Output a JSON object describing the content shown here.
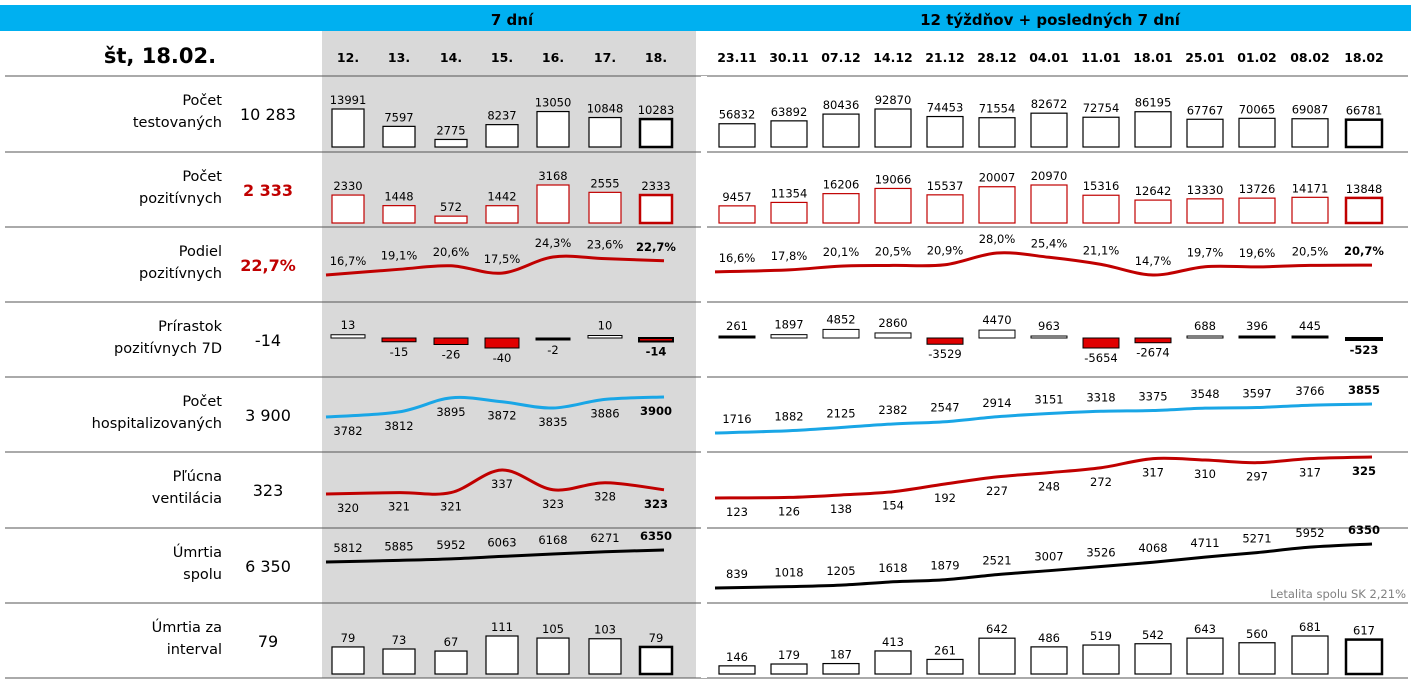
{
  "header": {
    "date": "št, 18.02.",
    "section_left": "7 dní",
    "section_right": "12 týždňov + posledných 7 dní"
  },
  "colors": {
    "header_blue": "#00b0f0",
    "shade": "#d9d9d9",
    "red": "#c00000",
    "bright_red": "#e00000",
    "blue_line": "#19a6e6",
    "black": "#000000"
  },
  "days": [
    "12.",
    "13.",
    "14.",
    "15.",
    "16.",
    "17.",
    "18."
  ],
  "weeks": [
    "23.11",
    "30.11",
    "07.12",
    "14.12",
    "21.12",
    "28.12",
    "04.01",
    "11.01",
    "18.01",
    "25.01",
    "01.02",
    "08.02",
    "18.02"
  ],
  "rows": [
    {
      "label_lines": [
        "Počet",
        "testovaných"
      ],
      "value": "10 283",
      "value_color": "#000000"
    },
    {
      "label_lines": [
        "Počet",
        "pozitívnych"
      ],
      "value": "2 333",
      "value_color": "#c00000"
    },
    {
      "label_lines": [
        "Podiel",
        "pozitívnych"
      ],
      "value": "22,7%",
      "value_color": "#c00000"
    },
    {
      "label_lines": [
        "Prírastok",
        "pozitívnych 7D"
      ],
      "value": "-14",
      "value_color": "#000000"
    },
    {
      "label_lines": [
        "Počet",
        "hospitalizovaných"
      ],
      "value": "3 900",
      "value_color": "#000000"
    },
    {
      "label_lines": [
        "Pľúcna",
        "ventilácia"
      ],
      "value": "323",
      "value_color": "#000000"
    },
    {
      "label_lines": [
        "Úmrtia",
        "spolu"
      ],
      "value": "6 350",
      "value_color": "#000000"
    },
    {
      "label_lines": [
        "Úmrtia za",
        "interval"
      ],
      "value": "79",
      "value_color": "#000000"
    }
  ],
  "footnote": "Letalita spolu SK 2,21%",
  "chart_data": [
    {
      "type": "bar",
      "title": "Počet testovaných",
      "categories": [
        "12.",
        "13.",
        "14.",
        "15.",
        "16.",
        "17.",
        "18."
      ],
      "values": [
        13991,
        7597,
        2775,
        8237,
        13050,
        10848,
        10283
      ],
      "labels": [
        "13991",
        "7597",
        "2775",
        "8237",
        "13050",
        "10848",
        "10283"
      ]
    },
    {
      "type": "bar",
      "title": "Počet testovaných",
      "categories": [
        "23.11",
        "30.11",
        "07.12",
        "14.12",
        "21.12",
        "28.12",
        "04.01",
        "11.01",
        "18.01",
        "25.01",
        "01.02",
        "08.02",
        "18.02"
      ],
      "values": [
        56832,
        63892,
        80436,
        92870,
        74453,
        71554,
        82672,
        72754,
        86195,
        67767,
        70065,
        69087,
        66781
      ],
      "labels": [
        "56832",
        "63892",
        "80436",
        "92870",
        "74453",
        "71554",
        "82672",
        "72754",
        "86195",
        "67767",
        "70065",
        "69087",
        "66781"
      ]
    },
    {
      "type": "bar",
      "title": "Počet pozitívnych",
      "categories": [
        "12.",
        "13.",
        "14.",
        "15.",
        "16.",
        "17.",
        "18."
      ],
      "values": [
        2330,
        1448,
        572,
        1442,
        3168,
        2555,
        2333
      ],
      "labels": [
        "2330",
        "1448",
        "572",
        "1442",
        "3168",
        "2555",
        "2333"
      ]
    },
    {
      "type": "bar",
      "title": "Počet pozitívnych",
      "categories": [
        "23.11",
        "30.11",
        "07.12",
        "14.12",
        "21.12",
        "28.12",
        "04.01",
        "11.01",
        "18.01",
        "25.01",
        "01.02",
        "08.02",
        "18.02"
      ],
      "values": [
        9457,
        11354,
        16206,
        19066,
        15537,
        20007,
        20970,
        15316,
        12642,
        13330,
        13726,
        14171,
        13848
      ],
      "labels": [
        "9457",
        "11354",
        "16206",
        "19066",
        "15537",
        "20007",
        "20970",
        "15316",
        "12642",
        "13330",
        "13726",
        "14171",
        "13848"
      ]
    },
    {
      "type": "line",
      "title": "Podiel pozitívnych",
      "categories": [
        "12.",
        "13.",
        "14.",
        "15.",
        "16.",
        "17.",
        "18."
      ],
      "values": [
        16.7,
        19.1,
        20.6,
        17.5,
        24.3,
        23.6,
        22.7
      ],
      "labels": [
        "16,7%",
        "19,1%",
        "20,6%",
        "17,5%",
        "24,3%",
        "23,6%",
        "22,7%"
      ]
    },
    {
      "type": "line",
      "title": "Podiel pozitívnych",
      "categories": [
        "23.11",
        "30.11",
        "07.12",
        "14.12",
        "21.12",
        "28.12",
        "04.01",
        "11.01",
        "18.01",
        "25.01",
        "01.02",
        "08.02",
        "18.02"
      ],
      "values": [
        16.6,
        17.8,
        20.1,
        20.5,
        20.9,
        28.0,
        25.4,
        21.1,
        14.7,
        19.7,
        19.6,
        20.5,
        20.7
      ],
      "labels": [
        "16,6%",
        "17,8%",
        "20,1%",
        "20,5%",
        "20,9%",
        "28,0%",
        "25,4%",
        "21,1%",
        "14,7%",
        "19,7%",
        "19,6%",
        "20,5%",
        "20,7%"
      ]
    },
    {
      "type": "bar",
      "title": "Prírastok pozitívnych 7D",
      "categories": [
        "12.",
        "13.",
        "14.",
        "15.",
        "16.",
        "17.",
        "18."
      ],
      "values": [
        13,
        -15,
        -26,
        -40,
        -2,
        10,
        -14
      ],
      "labels": [
        "13",
        "-15",
        "-26",
        "-40",
        "-2",
        "10",
        "-14"
      ]
    },
    {
      "type": "bar",
      "title": "Prírastok pozitívnych 7D",
      "categories": [
        "23.11",
        "30.11",
        "07.12",
        "14.12",
        "21.12",
        "28.12",
        "04.01",
        "11.01",
        "18.01",
        "25.01",
        "01.02",
        "08.02",
        "18.02"
      ],
      "values": [
        261,
        1897,
        4852,
        2860,
        -3529,
        4470,
        963,
        -5654,
        -2674,
        688,
        396,
        445,
        -523
      ],
      "labels": [
        "261",
        "1897",
        "4852",
        "2860",
        "-3529",
        "4470",
        "963",
        "-5654",
        "-2674",
        "688",
        "396",
        "445",
        "-523"
      ]
    },
    {
      "type": "line",
      "title": "Počet hospitalizovaných",
      "categories": [
        "12.",
        "13.",
        "14.",
        "15.",
        "16.",
        "17.",
        "18."
      ],
      "values": [
        3782,
        3812,
        3895,
        3872,
        3835,
        3886,
        3900
      ],
      "labels": [
        "3782",
        "3812",
        "3895",
        "3872",
        "3835",
        "3886",
        "3900"
      ]
    },
    {
      "type": "line",
      "title": "Počet hospitalizovaných",
      "categories": [
        "23.11",
        "30.11",
        "07.12",
        "14.12",
        "21.12",
        "28.12",
        "04.01",
        "11.01",
        "18.01",
        "25.01",
        "01.02",
        "08.02",
        "18.02"
      ],
      "values": [
        1716,
        1882,
        2125,
        2382,
        2547,
        2914,
        3151,
        3318,
        3375,
        3548,
        3597,
        3766,
        3855
      ],
      "labels": [
        "1716",
        "1882",
        "2125",
        "2382",
        "2547",
        "2914",
        "3151",
        "3318",
        "3375",
        "3548",
        "3597",
        "3766",
        "3855"
      ]
    },
    {
      "type": "line",
      "title": "Pľúcna ventilácia",
      "categories": [
        "12.",
        "13.",
        "14.",
        "15.",
        "16.",
        "17.",
        "18."
      ],
      "values": [
        320,
        321,
        321,
        337,
        323,
        328,
        323
      ],
      "labels": [
        "320",
        "321",
        "321",
        "337",
        "323",
        "328",
        "323"
      ]
    },
    {
      "type": "line",
      "title": "Pľúcna ventilácia",
      "categories": [
        "23.11",
        "30.11",
        "07.12",
        "14.12",
        "21.12",
        "28.12",
        "04.01",
        "11.01",
        "18.01",
        "25.01",
        "01.02",
        "08.02",
        "18.02"
      ],
      "values": [
        123,
        126,
        138,
        154,
        192,
        227,
        248,
        272,
        317,
        310,
        297,
        317,
        325
      ],
      "labels": [
        "123",
        "126",
        "138",
        "154",
        "192",
        "227",
        "248",
        "272",
        "317",
        "310",
        "297",
        "317",
        "325"
      ]
    },
    {
      "type": "line",
      "title": "Úmrtia spolu",
      "categories": [
        "12.",
        "13.",
        "14.",
        "15.",
        "16.",
        "17.",
        "18."
      ],
      "values": [
        5812,
        5885,
        5952,
        6063,
        6168,
        6271,
        6350
      ],
      "labels": [
        "5812",
        "5885",
        "5952",
        "6063",
        "6168",
        "6271",
        "6350"
      ]
    },
    {
      "type": "line",
      "title": "Úmrtia spolu",
      "categories": [
        "23.11",
        "30.11",
        "07.12",
        "14.12",
        "21.12",
        "28.12",
        "04.01",
        "11.01",
        "18.01",
        "25.01",
        "01.02",
        "08.02",
        "18.02"
      ],
      "values": [
        839,
        1018,
        1205,
        1618,
        1879,
        2521,
        3007,
        3526,
        4068,
        4711,
        5271,
        5952,
        6350
      ],
      "labels": [
        "839",
        "1018",
        "1205",
        "1618",
        "1879",
        "2521",
        "3007",
        "3526",
        "4068",
        "4711",
        "5271",
        "5952",
        "6350"
      ]
    },
    {
      "type": "bar",
      "title": "Úmrtia za interval",
      "categories": [
        "12.",
        "13.",
        "14.",
        "15.",
        "16.",
        "17.",
        "18."
      ],
      "values": [
        79,
        73,
        67,
        111,
        105,
        103,
        79
      ],
      "labels": [
        "79",
        "73",
        "67",
        "111",
        "105",
        "103",
        "79"
      ]
    },
    {
      "type": "bar",
      "title": "Úmrtia za interval",
      "categories": [
        "23.11",
        "30.11",
        "07.12",
        "14.12",
        "21.12",
        "28.12",
        "04.01",
        "11.01",
        "18.01",
        "25.01",
        "01.02",
        "08.02",
        "18.02"
      ],
      "values": [
        146,
        179,
        187,
        413,
        261,
        642,
        486,
        519,
        542,
        643,
        560,
        681,
        617
      ],
      "labels": [
        "146",
        "179",
        "187",
        "413",
        "261",
        "642",
        "486",
        "519",
        "542",
        "643",
        "560",
        "681",
        "617"
      ]
    }
  ]
}
